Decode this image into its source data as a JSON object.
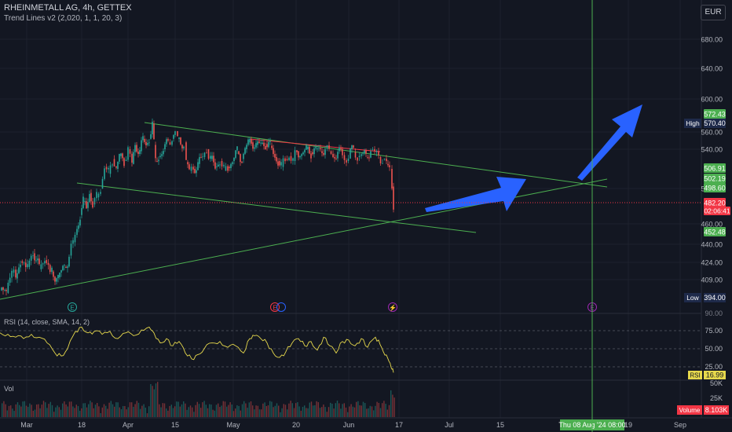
{
  "header": {
    "symbol": "RHEINMETALL AG, 4h, GETTEX",
    "indicator": "Trend Lines v2 (2,020, 1, 1, 20, 3)"
  },
  "currency": "EUR",
  "chart_data": {
    "type": "candlestick",
    "price_axis": {
      "ticks": [
        680,
        640,
        600,
        560,
        540,
        500,
        460,
        440,
        424,
        409
      ],
      "labels": [
        "680.00",
        "640.00",
        "600.00",
        "560.00",
        "540.00",
        "500.00",
        "460.00",
        "440.00",
        "424.00",
        "409.00"
      ]
    },
    "time_axis": {
      "labels": [
        "Mar",
        "18",
        "Apr",
        "15",
        "May",
        "20",
        "Jun",
        "17",
        "Jul",
        "15",
        "19",
        "Sep"
      ]
    },
    "price_badges": [
      {
        "value": "572.43",
        "color": "#4caf50"
      },
      {
        "value": "506.91",
        "color": "#4caf50"
      },
      {
        "value": "502.19",
        "color": "#4caf50"
      },
      {
        "value": "498.60",
        "color": "#4caf50"
      },
      {
        "value": "482.20",
        "color": "#f23645"
      },
      {
        "value": "452.48",
        "color": "#4caf50"
      }
    ],
    "countdown": "02:06:41",
    "high": {
      "label": "High",
      "value": "570.40"
    },
    "low": {
      "label": "Low",
      "value": "394.00"
    },
    "crosshair_label": "Thu 08 Aug '24  08:00",
    "price_path": [
      [
        0,
        400
      ],
      [
        8,
        398
      ],
      [
        15,
        415
      ],
      [
        20,
        410
      ],
      [
        26,
        425
      ],
      [
        35,
        420
      ],
      [
        42,
        432
      ],
      [
        50,
        418
      ],
      [
        57,
        426
      ],
      [
        66,
        416
      ],
      [
        74,
        411
      ],
      [
        82,
        420
      ],
      [
        88,
        430
      ],
      [
        93,
        442
      ],
      [
        98,
        455
      ],
      [
        102,
        470
      ],
      [
        106,
        485
      ],
      [
        110,
        478
      ],
      [
        114,
        495
      ],
      [
        118,
        482
      ],
      [
        123,
        490
      ],
      [
        128,
        500
      ],
      [
        133,
        522
      ],
      [
        138,
        515
      ],
      [
        143,
        530
      ],
      [
        148,
        520
      ],
      [
        152,
        533
      ],
      [
        158,
        528
      ],
      [
        163,
        540
      ],
      [
        168,
        525
      ],
      [
        172,
        545
      ],
      [
        178,
        538
      ],
      [
        182,
        552
      ],
      [
        186,
        545
      ],
      [
        190,
        552
      ],
      [
        194,
        570
      ],
      [
        196,
        545
      ],
      [
        198,
        528
      ],
      [
        202,
        532
      ],
      [
        208,
        540
      ],
      [
        214,
        548
      ],
      [
        219,
        552
      ],
      [
        223,
        561
      ],
      [
        226,
        552
      ],
      [
        230,
        545
      ],
      [
        234,
        548
      ],
      [
        237,
        527
      ],
      [
        241,
        518
      ],
      [
        246,
        520
      ],
      [
        252,
        525
      ],
      [
        258,
        532
      ],
      [
        263,
        540
      ],
      [
        268,
        530
      ],
      [
        274,
        522
      ],
      [
        280,
        528
      ],
      [
        285,
        518
      ],
      [
        290,
        522
      ],
      [
        296,
        528
      ],
      [
        302,
        538
      ],
      [
        308,
        530
      ],
      [
        312,
        540
      ],
      [
        316,
        548
      ],
      [
        320,
        548
      ],
      [
        326,
        545
      ],
      [
        332,
        546
      ],
      [
        338,
        546
      ],
      [
        344,
        544
      ],
      [
        350,
        532
      ],
      [
        354,
        528
      ],
      [
        358,
        522
      ],
      [
        363,
        530
      ],
      [
        368,
        533
      ],
      [
        373,
        528
      ],
      [
        378,
        538
      ],
      [
        384,
        535
      ],
      [
        390,
        540
      ],
      [
        396,
        537
      ],
      [
        402,
        540
      ],
      [
        408,
        538
      ],
      [
        414,
        542
      ],
      [
        419,
        538
      ],
      [
        424,
        532
      ],
      [
        430,
        538
      ],
      [
        436,
        534
      ],
      [
        441,
        528
      ],
      [
        446,
        540
      ],
      [
        450,
        537
      ],
      [
        455,
        532
      ],
      [
        460,
        536
      ],
      [
        466,
        532
      ],
      [
        472,
        540
      ],
      [
        477,
        537
      ],
      [
        482,
        532
      ],
      [
        487,
        530
      ],
      [
        492,
        525
      ],
      [
        496,
        520
      ],
      [
        499,
        502
      ],
      [
        501,
        482
      ]
    ],
    "rsi": {
      "label": "RSI (14, close, SMA, 14, 2)",
      "ticks": [
        "75.00",
        "50.00",
        "25.00"
      ],
      "top_label": "90.00",
      "value": "16.99",
      "values": [
        [
          0,
          72
        ],
        [
          10,
          70
        ],
        [
          20,
          66
        ],
        [
          30,
          64
        ],
        [
          40,
          70
        ],
        [
          50,
          66
        ],
        [
          60,
          58
        ],
        [
          70,
          44
        ],
        [
          78,
          40
        ],
        [
          86,
          50
        ],
        [
          96,
          74
        ],
        [
          104,
          80
        ],
        [
          112,
          72
        ],
        [
          120,
          74
        ],
        [
          130,
          70
        ],
        [
          140,
          74
        ],
        [
          150,
          64
        ],
        [
          160,
          72
        ],
        [
          170,
          68
        ],
        [
          180,
          76
        ],
        [
          190,
          80
        ],
        [
          196,
          72
        ],
        [
          204,
          58
        ],
        [
          212,
          64
        ],
        [
          220,
          54
        ],
        [
          228,
          60
        ],
        [
          236,
          44
        ],
        [
          244,
          36
        ],
        [
          252,
          42
        ],
        [
          260,
          50
        ],
        [
          270,
          58
        ],
        [
          280,
          60
        ],
        [
          290,
          52
        ],
        [
          300,
          54
        ],
        [
          310,
          44
        ],
        [
          318,
          64
        ],
        [
          324,
          68
        ],
        [
          332,
          64
        ],
        [
          340,
          58
        ],
        [
          348,
          44
        ],
        [
          356,
          38
        ],
        [
          364,
          46
        ],
        [
          372,
          58
        ],
        [
          380,
          64
        ],
        [
          388,
          54
        ],
        [
          396,
          60
        ],
        [
          404,
          48
        ],
        [
          412,
          66
        ],
        [
          420,
          54
        ],
        [
          428,
          44
        ],
        [
          436,
          60
        ],
        [
          444,
          62
        ],
        [
          452,
          54
        ],
        [
          460,
          64
        ],
        [
          468,
          52
        ],
        [
          476,
          64
        ],
        [
          482,
          62
        ],
        [
          488,
          46
        ],
        [
          494,
          36
        ],
        [
          498,
          24
        ],
        [
          501,
          17
        ]
      ]
    },
    "volume": {
      "label": "Vol",
      "ticks": [
        "50K",
        "25K"
      ],
      "value_label": "Volume",
      "value": "8.103K"
    },
    "series": [
      {
        "name": "RHEINMETALL AG",
        "values": []
      }
    ]
  }
}
